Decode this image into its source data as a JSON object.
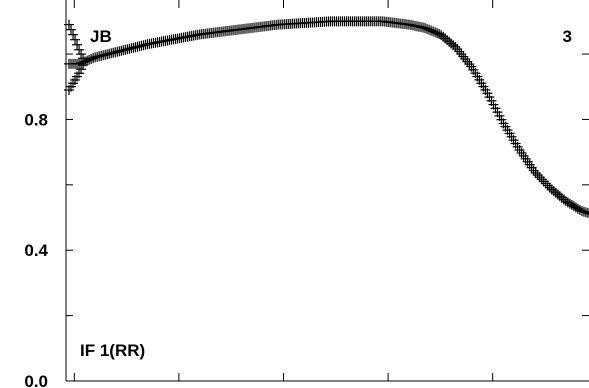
{
  "chart_data": {
    "type": "scatter",
    "marker": "plus",
    "colors": {
      "ink": "#000000",
      "background": "#ffffff"
    },
    "ylim": [
      0.0,
      1.15
    ],
    "xlim": [
      0,
      1
    ],
    "y_ticks": [
      {
        "value": 0.0,
        "label": "0.0"
      },
      {
        "value": 0.4,
        "label": "0.4"
      },
      {
        "value": 0.8,
        "label": "0.8"
      }
    ],
    "y_minor_ticks": [
      0.2,
      0.6,
      1.0
    ],
    "x_ticks": [
      0.1,
      0.3,
      0.5,
      0.7,
      0.9
    ],
    "annotations": {
      "top_left": "JB",
      "top_right": "3",
      "bottom_left": "IF 1(RR)"
    },
    "curve": [
      [
        0.0,
        0.97
      ],
      [
        0.02,
        0.97
      ],
      [
        0.05,
        0.99
      ],
      [
        0.1,
        1.01
      ],
      [
        0.15,
        1.03
      ],
      [
        0.2,
        1.045
      ],
      [
        0.25,
        1.06
      ],
      [
        0.3,
        1.07
      ],
      [
        0.35,
        1.08
      ],
      [
        0.4,
        1.09
      ],
      [
        0.45,
        1.095
      ],
      [
        0.5,
        1.1
      ],
      [
        0.55,
        1.1
      ],
      [
        0.6,
        1.1
      ],
      [
        0.65,
        1.09
      ],
      [
        0.68,
        1.08
      ],
      [
        0.71,
        1.06
      ],
      [
        0.74,
        1.02
      ],
      [
        0.77,
        0.96
      ],
      [
        0.8,
        0.88
      ],
      [
        0.83,
        0.79
      ],
      [
        0.86,
        0.71
      ],
      [
        0.89,
        0.64
      ],
      [
        0.92,
        0.59
      ],
      [
        0.95,
        0.55
      ],
      [
        0.98,
        0.52
      ],
      [
        1.0,
        0.51
      ]
    ]
  }
}
